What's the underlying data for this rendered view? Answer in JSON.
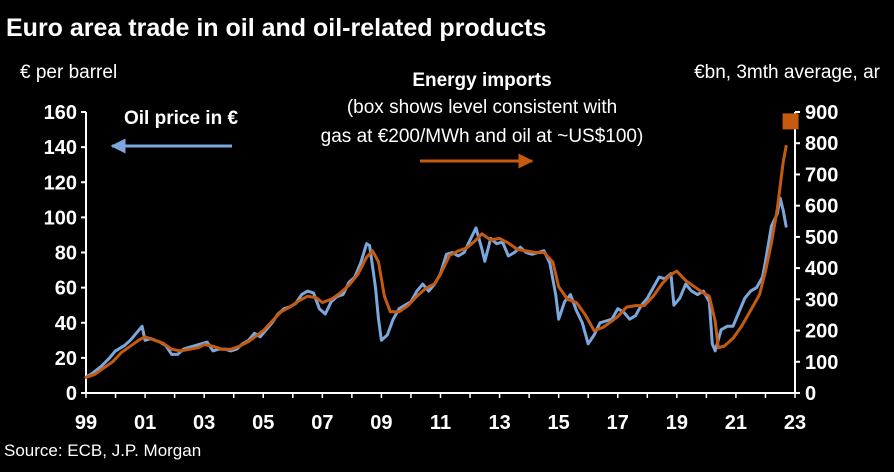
{
  "chart_data": {
    "type": "line",
    "title": "Euro area trade in oil and oil-related products",
    "left_axis_label": "€ per barrel",
    "right_axis_label": "€bn, 3mth average, ar",
    "source": "Source: ECB, J.P. Morgan",
    "x_tick_labels": [
      "99",
      "01",
      "03",
      "05",
      "07",
      "09",
      "11",
      "13",
      "15",
      "17",
      "19",
      "21",
      "23"
    ],
    "x_range": [
      1999,
      2023
    ],
    "left_ylim": [
      0,
      160
    ],
    "left_ticks": [
      0,
      20,
      40,
      60,
      80,
      100,
      120,
      140,
      160
    ],
    "right_ylim": [
      0,
      900
    ],
    "right_ticks": [
      0,
      100,
      200,
      300,
      400,
      500,
      600,
      700,
      800,
      900
    ],
    "annotations": {
      "oil_label": "Oil price in €",
      "energy_title": "Energy imports",
      "energy_note_line1": "(box shows level consistent with",
      "energy_note_line2": "gas at €200/MWh and oil at ~US$100)"
    },
    "series": [
      {
        "name": "Oil price in €",
        "axis": "left",
        "color": "#7ba7dc",
        "points": [
          [
            1999.0,
            9
          ],
          [
            1999.2,
            11
          ],
          [
            1999.5,
            15
          ],
          [
            1999.8,
            20
          ],
          [
            2000.0,
            24
          ],
          [
            2000.3,
            27
          ],
          [
            2000.5,
            30
          ],
          [
            2000.7,
            34
          ],
          [
            2000.9,
            38
          ],
          [
            2001.0,
            30
          ],
          [
            2001.2,
            31
          ],
          [
            2001.5,
            29
          ],
          [
            2001.7,
            27
          ],
          [
            2001.9,
            22
          ],
          [
            2002.1,
            22
          ],
          [
            2002.3,
            25
          ],
          [
            2002.5,
            26
          ],
          [
            2002.7,
            27
          ],
          [
            2002.9,
            28
          ],
          [
            2003.1,
            29
          ],
          [
            2003.3,
            24
          ],
          [
            2003.5,
            25
          ],
          [
            2003.7,
            25
          ],
          [
            2003.9,
            24
          ],
          [
            2004.1,
            25
          ],
          [
            2004.3,
            28
          ],
          [
            2004.5,
            30
          ],
          [
            2004.7,
            34
          ],
          [
            2004.9,
            32
          ],
          [
            2005.1,
            36
          ],
          [
            2005.3,
            40
          ],
          [
            2005.5,
            45
          ],
          [
            2005.7,
            48
          ],
          [
            2005.9,
            49
          ],
          [
            2006.1,
            51
          ],
          [
            2006.3,
            56
          ],
          [
            2006.5,
            58
          ],
          [
            2006.7,
            57
          ],
          [
            2006.9,
            48
          ],
          [
            2007.1,
            45
          ],
          [
            2007.3,
            52
          ],
          [
            2007.5,
            55
          ],
          [
            2007.7,
            56
          ],
          [
            2007.9,
            63
          ],
          [
            2008.1,
            66
          ],
          [
            2008.3,
            74
          ],
          [
            2008.5,
            85
          ],
          [
            2008.6,
            84
          ],
          [
            2008.8,
            60
          ],
          [
            2008.9,
            42
          ],
          [
            2009.0,
            30
          ],
          [
            2009.2,
            33
          ],
          [
            2009.4,
            42
          ],
          [
            2009.6,
            48
          ],
          [
            2009.8,
            50
          ],
          [
            2010.0,
            52
          ],
          [
            2010.2,
            58
          ],
          [
            2010.4,
            62
          ],
          [
            2010.6,
            58
          ],
          [
            2010.8,
            62
          ],
          [
            2011.0,
            68
          ],
          [
            2011.2,
            79
          ],
          [
            2011.4,
            80
          ],
          [
            2011.6,
            78
          ],
          [
            2011.8,
            80
          ],
          [
            2012.0,
            87
          ],
          [
            2012.2,
            94
          ],
          [
            2012.4,
            82
          ],
          [
            2012.5,
            75
          ],
          [
            2012.7,
            88
          ],
          [
            2012.9,
            85
          ],
          [
            2013.1,
            86
          ],
          [
            2013.3,
            78
          ],
          [
            2013.5,
            80
          ],
          [
            2013.7,
            83
          ],
          [
            2013.9,
            80
          ],
          [
            2014.1,
            79
          ],
          [
            2014.3,
            80
          ],
          [
            2014.5,
            81
          ],
          [
            2014.7,
            74
          ],
          [
            2014.9,
            56
          ],
          [
            2015.0,
            42
          ],
          [
            2015.2,
            52
          ],
          [
            2015.4,
            56
          ],
          [
            2015.6,
            47
          ],
          [
            2015.8,
            40
          ],
          [
            2016.0,
            28
          ],
          [
            2016.2,
            33
          ],
          [
            2016.4,
            40
          ],
          [
            2016.6,
            41
          ],
          [
            2016.8,
            42
          ],
          [
            2017.0,
            48
          ],
          [
            2017.2,
            46
          ],
          [
            2017.4,
            42
          ],
          [
            2017.6,
            44
          ],
          [
            2017.8,
            50
          ],
          [
            2018.0,
            54
          ],
          [
            2018.2,
            60
          ],
          [
            2018.4,
            66
          ],
          [
            2018.6,
            65
          ],
          [
            2018.8,
            68
          ],
          [
            2018.9,
            50
          ],
          [
            2019.1,
            54
          ],
          [
            2019.3,
            62
          ],
          [
            2019.5,
            58
          ],
          [
            2019.7,
            56
          ],
          [
            2019.9,
            58
          ],
          [
            2020.1,
            52
          ],
          [
            2020.2,
            28
          ],
          [
            2020.3,
            24
          ],
          [
            2020.5,
            36
          ],
          [
            2020.7,
            38
          ],
          [
            2020.9,
            38
          ],
          [
            2021.1,
            46
          ],
          [
            2021.3,
            54
          ],
          [
            2021.5,
            58
          ],
          [
            2021.7,
            60
          ],
          [
            2021.9,
            66
          ],
          [
            2022.0,
            75
          ],
          [
            2022.2,
            95
          ],
          [
            2022.4,
            102
          ],
          [
            2022.5,
            111
          ],
          [
            2022.6,
            104
          ],
          [
            2022.7,
            95
          ]
        ]
      },
      {
        "name": "Energy imports",
        "axis": "right",
        "color": "#c55a11",
        "points": [
          [
            1999.0,
            50
          ],
          [
            1999.3,
            60
          ],
          [
            1999.6,
            80
          ],
          [
            1999.9,
            100
          ],
          [
            2000.2,
            130
          ],
          [
            2000.5,
            150
          ],
          [
            2000.8,
            170
          ],
          [
            2001.0,
            180
          ],
          [
            2001.3,
            170
          ],
          [
            2001.6,
            160
          ],
          [
            2001.9,
            140
          ],
          [
            2002.2,
            135
          ],
          [
            2002.5,
            140
          ],
          [
            2002.8,
            145
          ],
          [
            2003.0,
            155
          ],
          [
            2003.3,
            150
          ],
          [
            2003.6,
            140
          ],
          [
            2003.9,
            140
          ],
          [
            2004.2,
            150
          ],
          [
            2004.5,
            165
          ],
          [
            2004.8,
            185
          ],
          [
            2005.0,
            200
          ],
          [
            2005.3,
            230
          ],
          [
            2005.6,
            260
          ],
          [
            2005.9,
            275
          ],
          [
            2006.2,
            295
          ],
          [
            2006.5,
            310
          ],
          [
            2006.8,
            305
          ],
          [
            2007.0,
            290
          ],
          [
            2007.3,
            300
          ],
          [
            2007.6,
            320
          ],
          [
            2007.9,
            345
          ],
          [
            2008.2,
            380
          ],
          [
            2008.5,
            435
          ],
          [
            2008.7,
            455
          ],
          [
            2008.9,
            420
          ],
          [
            2009.1,
            310
          ],
          [
            2009.3,
            260
          ],
          [
            2009.6,
            260
          ],
          [
            2009.9,
            280
          ],
          [
            2010.2,
            310
          ],
          [
            2010.5,
            335
          ],
          [
            2010.8,
            350
          ],
          [
            2011.0,
            380
          ],
          [
            2011.3,
            440
          ],
          [
            2011.6,
            455
          ],
          [
            2011.9,
            465
          ],
          [
            2012.2,
            490
          ],
          [
            2012.4,
            510
          ],
          [
            2012.7,
            490
          ],
          [
            2013.0,
            495
          ],
          [
            2013.3,
            480
          ],
          [
            2013.6,
            460
          ],
          [
            2013.9,
            455
          ],
          [
            2014.2,
            450
          ],
          [
            2014.5,
            450
          ],
          [
            2014.8,
            420
          ],
          [
            2015.0,
            340
          ],
          [
            2015.3,
            300
          ],
          [
            2015.6,
            290
          ],
          [
            2015.9,
            250
          ],
          [
            2016.2,
            200
          ],
          [
            2016.5,
            210
          ],
          [
            2016.8,
            230
          ],
          [
            2017.0,
            245
          ],
          [
            2017.3,
            275
          ],
          [
            2017.6,
            280
          ],
          [
            2017.9,
            280
          ],
          [
            2018.2,
            310
          ],
          [
            2018.5,
            350
          ],
          [
            2018.8,
            380
          ],
          [
            2019.0,
            390
          ],
          [
            2019.3,
            360
          ],
          [
            2019.6,
            340
          ],
          [
            2019.9,
            320
          ],
          [
            2020.1,
            310
          ],
          [
            2020.3,
            230
          ],
          [
            2020.4,
            145
          ],
          [
            2020.6,
            150
          ],
          [
            2020.9,
            175
          ],
          [
            2021.2,
            215
          ],
          [
            2021.5,
            265
          ],
          [
            2021.8,
            315
          ],
          [
            2022.0,
            390
          ],
          [
            2022.2,
            480
          ],
          [
            2022.4,
            590
          ],
          [
            2022.6,
            740
          ],
          [
            2022.7,
            790
          ]
        ]
      }
    ],
    "target_box": {
      "label": "level consistent with gas at €200/MWh and oil at ~US$100",
      "axis": "right",
      "x": 2022.85,
      "y": 870,
      "color": "#c55a11"
    }
  }
}
